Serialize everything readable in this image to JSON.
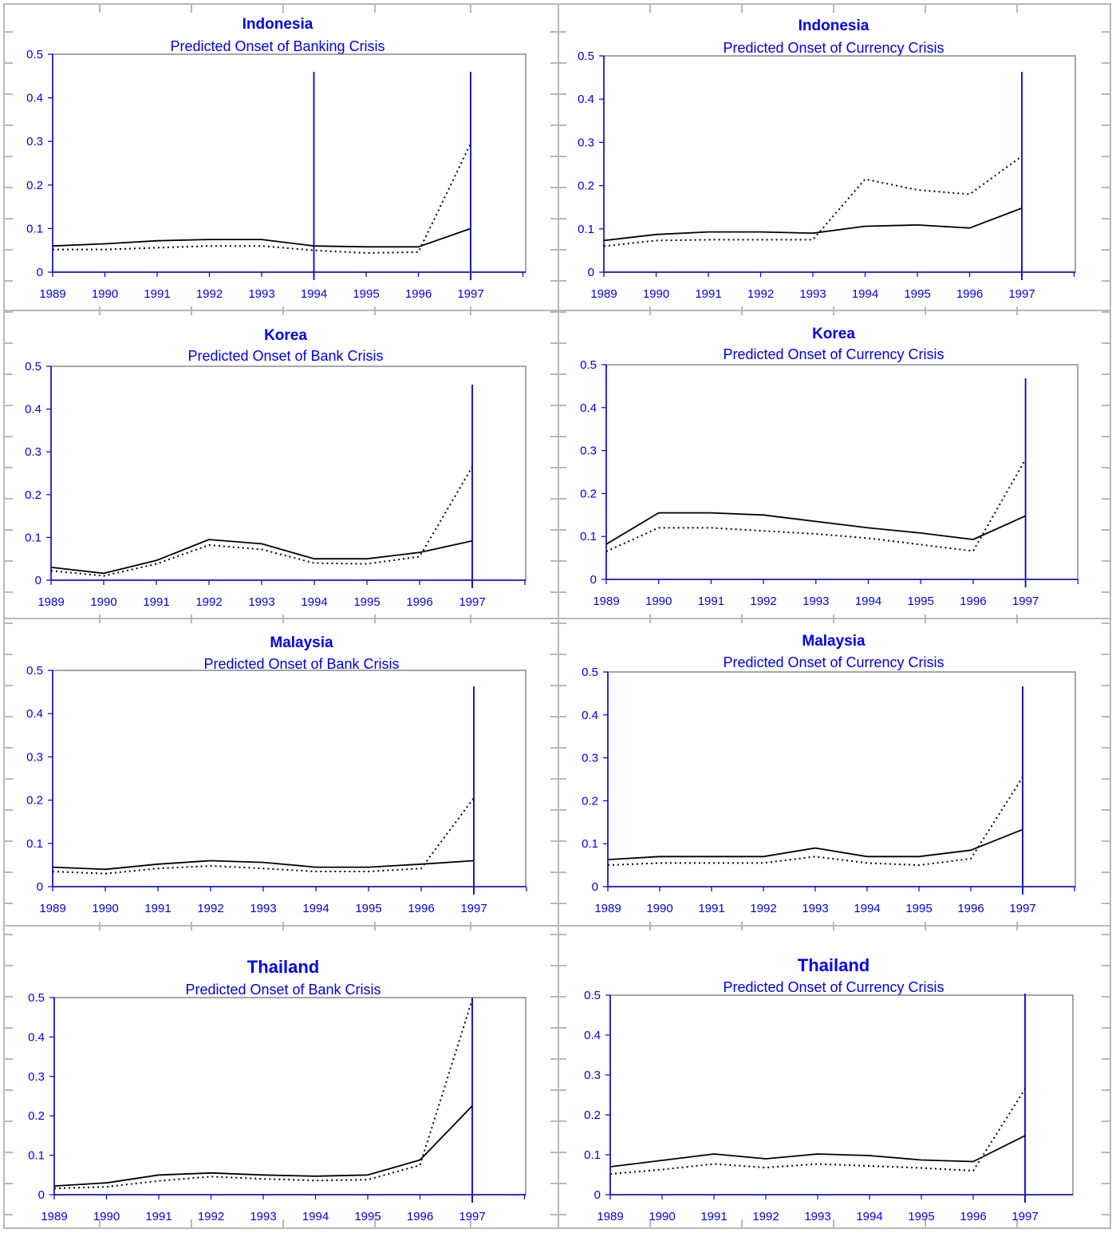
{
  "chart_data": [
    {
      "type": "line",
      "title": "Indonesia",
      "subtitle": "Predicted Onset of Banking Crisis",
      "categories": [
        "1989",
        "1990",
        "1991",
        "1992",
        "1993",
        "1994",
        "1995",
        "1996",
        "1997"
      ],
      "ylim": [
        0,
        0.5
      ],
      "yticks": [
        "0",
        "0.1",
        "0.2",
        "0.3",
        "0.4",
        "0.5"
      ],
      "vlines": [
        "1994",
        "1997"
      ],
      "series": [
        {
          "style": "solid",
          "values": [
            0.06,
            0.065,
            0.072,
            0.075,
            0.075,
            0.06,
            0.058,
            0.058,
            0.1
          ]
        },
        {
          "style": "dotted",
          "values": [
            0.052,
            0.052,
            0.056,
            0.06,
            0.06,
            0.05,
            0.044,
            0.046,
            0.295
          ]
        }
      ]
    },
    {
      "type": "line",
      "title": "Indonesia",
      "subtitle": "Predicted Onset of Currency Crisis",
      "categories": [
        "1989",
        "1990",
        "1991",
        "1992",
        "1993",
        "1994",
        "1995",
        "1996",
        "1997"
      ],
      "ylim": [
        0,
        0.5
      ],
      "yticks": [
        "0",
        "0.1",
        "0.2",
        "0.3",
        "0.4",
        "0.5"
      ],
      "vlines": [
        "1997"
      ],
      "series": [
        {
          "style": "solid",
          "values": [
            0.073,
            0.087,
            0.093,
            0.093,
            0.09,
            0.106,
            0.109,
            0.102,
            0.148
          ]
        },
        {
          "style": "dotted",
          "values": [
            0.06,
            0.073,
            0.075,
            0.075,
            0.075,
            0.215,
            0.19,
            0.18,
            0.268
          ]
        }
      ]
    },
    {
      "type": "line",
      "title": "Korea",
      "subtitle": "Predicted Onset of Bank Crisis",
      "categories": [
        "1989",
        "1990",
        "1991",
        "1992",
        "1993",
        "1994",
        "1995",
        "1996",
        "1997"
      ],
      "ylim": [
        0,
        0.5
      ],
      "yticks": [
        "0",
        "0.1",
        "0.2",
        "0.3",
        "0.4",
        "0.5"
      ],
      "vlines": [
        "1997"
      ],
      "series": [
        {
          "style": "solid",
          "values": [
            0.03,
            0.016,
            0.046,
            0.095,
            0.085,
            0.05,
            0.05,
            0.065,
            0.092
          ]
        },
        {
          "style": "dotted",
          "values": [
            0.022,
            0.01,
            0.038,
            0.082,
            0.072,
            0.04,
            0.038,
            0.055,
            0.265
          ]
        }
      ]
    },
    {
      "type": "line",
      "title": "Korea",
      "subtitle": "Predicted Onset of Currency Crisis",
      "categories": [
        "1989",
        "1990",
        "1991",
        "1992",
        "1993",
        "1994",
        "1995",
        "1996",
        "1997"
      ],
      "ylim": [
        0,
        0.5
      ],
      "yticks": [
        "0",
        "0.1",
        "0.2",
        "0.3",
        "0.4",
        "0.5"
      ],
      "vlines": [
        "1997"
      ],
      "series": [
        {
          "style": "solid",
          "values": [
            0.082,
            0.155,
            0.155,
            0.15,
            0.135,
            0.12,
            0.108,
            0.093,
            0.148
          ]
        },
        {
          "style": "dotted",
          "values": [
            0.065,
            0.12,
            0.12,
            0.113,
            0.106,
            0.096,
            0.081,
            0.066,
            0.28
          ]
        }
      ]
    },
    {
      "type": "line",
      "title": "Malaysia",
      "subtitle": "Predicted Onset of Bank Crisis",
      "categories": [
        "1989",
        "1990",
        "1991",
        "1992",
        "1993",
        "1994",
        "1995",
        "1996",
        "1997"
      ],
      "ylim": [
        0,
        0.5
      ],
      "yticks": [
        "0",
        "0.1",
        "0.2",
        "0.3",
        "0.4",
        "0.5"
      ],
      "vlines": [
        "1997"
      ],
      "series": [
        {
          "style": "solid",
          "values": [
            0.045,
            0.04,
            0.052,
            0.06,
            0.056,
            0.045,
            0.045,
            0.052,
            0.06
          ]
        },
        {
          "style": "dotted",
          "values": [
            0.035,
            0.03,
            0.042,
            0.048,
            0.042,
            0.035,
            0.035,
            0.042,
            0.205
          ]
        }
      ]
    },
    {
      "type": "line",
      "title": "Malaysia",
      "subtitle": "Predicted Onset of Currency Crisis",
      "categories": [
        "1989",
        "1990",
        "1991",
        "1992",
        "1993",
        "1994",
        "1995",
        "1996",
        "1997"
      ],
      "ylim": [
        0,
        0.5
      ],
      "yticks": [
        "0",
        "0.1",
        "0.2",
        "0.3",
        "0.4",
        "0.5"
      ],
      "vlines": [
        "1997"
      ],
      "series": [
        {
          "style": "solid",
          "values": [
            0.063,
            0.07,
            0.07,
            0.07,
            0.09,
            0.07,
            0.07,
            0.085,
            0.133
          ]
        },
        {
          "style": "dotted",
          "values": [
            0.05,
            0.055,
            0.055,
            0.055,
            0.07,
            0.055,
            0.05,
            0.065,
            0.255
          ]
        }
      ]
    },
    {
      "type": "line",
      "title": "Thailand",
      "subtitle": "Predicted Onset of Bank Crisis",
      "categories": [
        "1989",
        "1990",
        "1991",
        "1992",
        "1993",
        "1994",
        "1995",
        "1996",
        "1997"
      ],
      "ylim": [
        0,
        0.5
      ],
      "yticks": [
        "0",
        "0.1",
        "0.2",
        "0.3",
        "0.4",
        "0.5"
      ],
      "vlines": [
        "1997"
      ],
      "series": [
        {
          "style": "solid",
          "values": [
            0.022,
            0.03,
            0.05,
            0.055,
            0.05,
            0.047,
            0.05,
            0.088,
            0.225
          ]
        },
        {
          "style": "dotted",
          "values": [
            0.016,
            0.02,
            0.035,
            0.046,
            0.04,
            0.036,
            0.038,
            0.075,
            0.495
          ]
        }
      ]
    },
    {
      "type": "line",
      "title": "Thailand",
      "subtitle": "Predicted Onset of Currency Crisis",
      "categories": [
        "1989",
        "1990",
        "1991",
        "1992",
        "1993",
        "1994",
        "1995",
        "1996",
        "1997"
      ],
      "ylim": [
        0,
        0.5
      ],
      "yticks": [
        "0",
        "0.1",
        "0.2",
        "0.3",
        "0.4",
        "0.5"
      ],
      "vlines": [
        "1997"
      ],
      "series": [
        {
          "style": "solid",
          "values": [
            0.07,
            0.086,
            0.102,
            0.09,
            0.102,
            0.098,
            0.087,
            0.083,
            0.148
          ]
        },
        {
          "style": "dotted",
          "values": [
            0.052,
            0.063,
            0.077,
            0.068,
            0.077,
            0.072,
            0.067,
            0.06,
            0.265
          ]
        }
      ]
    }
  ]
}
